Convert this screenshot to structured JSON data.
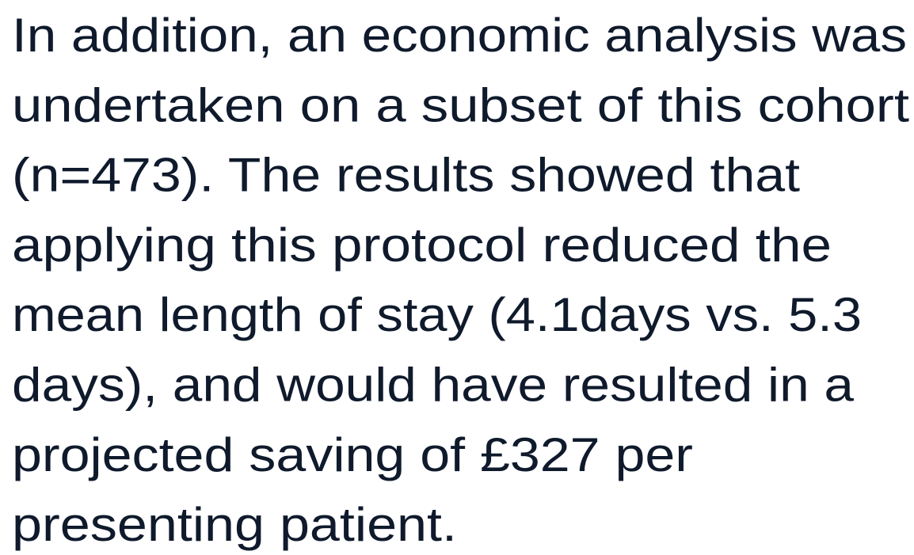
{
  "paragraph": {
    "lines": [
      "In addition, an economic analysis was",
      "undertaken on a subset of this cohort",
      "(n=473). The results showed that",
      "applying this protocol reduced the",
      "mean length of stay (4.1days vs. 5.3",
      "days), and would have resulted in a",
      "projected saving of £327 per",
      "presenting patient."
    ]
  }
}
